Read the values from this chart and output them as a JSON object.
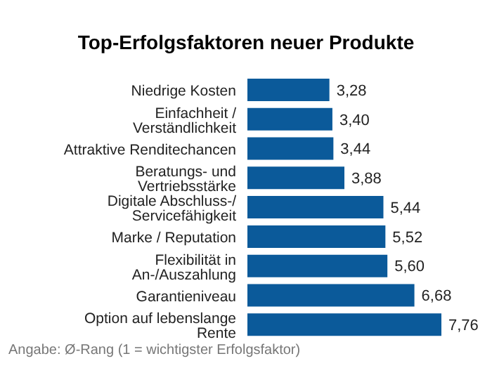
{
  "chart_data": {
    "type": "bar",
    "orientation": "horizontal",
    "title": "Top-Erfolgsfaktoren neuer Produkte",
    "categories": [
      "Niedrige Kosten",
      "Einfachheit / Verständlichkeit",
      "Attraktive Renditechancen",
      "Beratungs- und Vertriebsstärke",
      "Digitale Abschluss-/ Servicefähigkeit",
      "Marke / Reputation",
      "Flexibilität in An-/Auszahlung",
      "Garantieniveau",
      "Option auf lebenslange Rente"
    ],
    "values": [
      3.28,
      3.4,
      3.44,
      3.88,
      5.44,
      5.52,
      5.6,
      6.68,
      7.76
    ],
    "value_labels": [
      "3,28",
      "3,40",
      "3,44",
      "3,88",
      "5,44",
      "5,52",
      "5,60",
      "6,68",
      "7,76"
    ],
    "color": "#0b5a9a",
    "annotations": [
      "Angabe: Ø-Rang (1 = wichtigster Erfolgsfaktor)"
    ]
  }
}
